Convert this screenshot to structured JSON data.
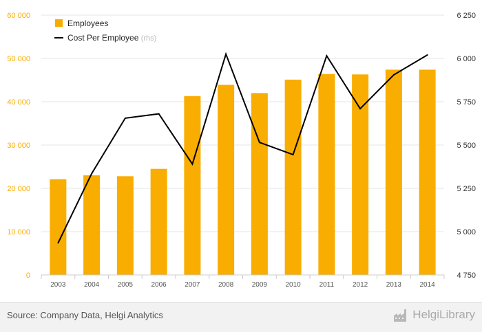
{
  "chart_data": {
    "type": "bar+line",
    "categories": [
      "2003",
      "2004",
      "2005",
      "2006",
      "2007",
      "2008",
      "2009",
      "2010",
      "2011",
      "2012",
      "2013",
      "2014"
    ],
    "series": [
      {
        "name": "Employees",
        "kind": "bar",
        "axis": "left",
        "values": [
          22100,
          23000,
          22800,
          24500,
          41300,
          43900,
          42000,
          45100,
          46400,
          46300,
          47400,
          47400
        ]
      },
      {
        "name": "Cost Per Employee",
        "name_suffix": "(rhs)",
        "kind": "line",
        "axis": "right",
        "values": [
          4935,
          5335,
          5655,
          5680,
          5390,
          6025,
          5515,
          5445,
          6015,
          5710,
          5905,
          6020
        ]
      }
    ],
    "left_axis": {
      "ticks": [
        "0",
        "10 000",
        "20 000",
        "30 000",
        "40 000",
        "50 000",
        "60 000"
      ],
      "ylim": [
        0,
        60000
      ]
    },
    "right_axis": {
      "ticks": [
        "4 750",
        "5 000",
        "5 250",
        "5 500",
        "5 750",
        "6 000",
        "6 250"
      ],
      "ylim": [
        4750,
        6250
      ]
    },
    "legend_position": "top-left",
    "grid": true,
    "colors": {
      "bar": "#f9ad00",
      "line": "#000000",
      "left_tick": "#f9ad00",
      "right_tick": "#333333",
      "grid": "#e6e6e6",
      "suffix": "#bbbbbb"
    }
  },
  "footer": {
    "source": "Source: Company Data, Helgi Analytics",
    "brand": "HelgiLibrary",
    "brand_icon": "factory-icon"
  }
}
